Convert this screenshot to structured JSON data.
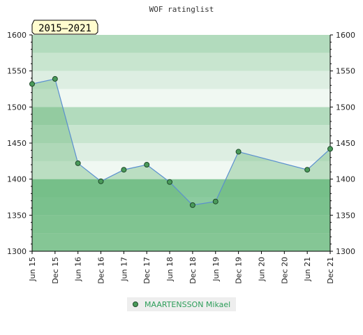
{
  "chart_data": {
    "type": "area",
    "title": "WOF ratinglist",
    "period_label": "2015–2021",
    "xlabel": "",
    "ylabel": "",
    "x_ticks": [
      "Jun 15",
      "Dec 15",
      "Jun 16",
      "Dec 16",
      "Jun 17",
      "Dec 17",
      "Jun 18",
      "Dec 18",
      "Jun 19",
      "Dec 19",
      "Jun 20",
      "Dec 20",
      "Jun 21",
      "Dec 21"
    ],
    "y_ticks": [
      1300,
      1350,
      1400,
      1450,
      1500,
      1550,
      1600
    ],
    "ylim": [
      1300,
      1600
    ],
    "right_axis": true,
    "grid": "horizontal bands",
    "legend_position": "bottom-center",
    "series": [
      {
        "name": "MAARTENSSON Mikael",
        "points": [
          {
            "x": "Jun 15",
            "y": 1532
          },
          {
            "x": "Dec 15",
            "y": 1539
          },
          {
            "x": "Jun 16",
            "y": 1422
          },
          {
            "x": "Dec 16",
            "y": 1397
          },
          {
            "x": "Jun 17",
            "y": 1413
          },
          {
            "x": "Dec 17",
            "y": 1420
          },
          {
            "x": "Jun 18",
            "y": 1396
          },
          {
            "x": "Dec 18",
            "y": 1364
          },
          {
            "x": "Jun 19",
            "y": 1369
          },
          {
            "x": "Dec 19",
            "y": 1438
          },
          {
            "x": "Jun 21",
            "y": 1413
          },
          {
            "x": "Dec 21",
            "y": 1442
          }
        ]
      }
    ],
    "colors": {
      "line": "#5a8fcf",
      "area": "#5aae6a",
      "marker_fill": "#4a9a5a",
      "marker_stroke": "#1e4a2a",
      "band_top": "#b2dbbd",
      "band_light": "#c8e5cf",
      "band_lighter": "#ddeee2",
      "band_lightest": "#eef7f0",
      "band_dark": "#8ccba0",
      "band_darker": "#9dd3ad",
      "legend_bg": "#eeeeee",
      "period_bg": "#fffccf"
    }
  }
}
